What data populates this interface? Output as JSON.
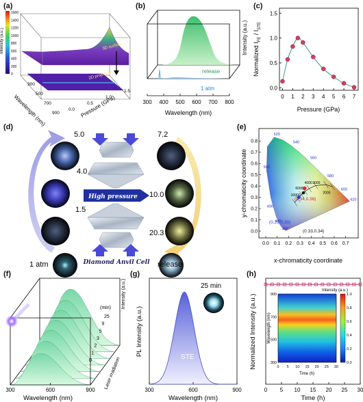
{
  "panel_labels": [
    "(a)",
    "(b)",
    "(c)",
    "(d)",
    "(e)",
    "(f)",
    "(g)",
    "(h)"
  ],
  "panel_a": {
    "colorbar_title": "Intensity (a.u.)",
    "colorbar_ticks": [
      "1600",
      "1400",
      "1200",
      "1000",
      "800",
      "600",
      "400",
      "200",
      "0"
    ],
    "surface_label": "3D surface",
    "projection_label": "2D projection",
    "xlabel": "Wavelength (nm)",
    "ylabel": "Pressure (GPa)",
    "x_ticks": [
      "300",
      "500",
      "700",
      "900"
    ],
    "y_ticks": [
      "0.0",
      "0.5",
      "1.0",
      "1.5"
    ]
  },
  "panel_b": {
    "ylabel": "Intensity (a.u.)",
    "xlabel": "Wavelength (nm)",
    "x_ticks": [
      "300",
      "400",
      "500",
      "600",
      "700",
      "800"
    ],
    "label_release": "release",
    "label_1atm": "1 atm"
  },
  "panel_c": {
    "ylabel_main": "Normalized I",
    "ylabel_sub1": "FE",
    "ylabel_mid": " / I",
    "ylabel_sub2": "STE",
    "xlabel": "Pressure (GPa)",
    "x_ticks": [
      "0",
      "1",
      "2",
      "3",
      "4",
      "5",
      "6",
      "7"
    ],
    "y_ticks": [
      "0.0",
      "0.5",
      "1.0",
      "1.5"
    ]
  },
  "chart_data": [
    {
      "type": "scatter",
      "panel": "c",
      "x": [
        0.0,
        0.5,
        1.0,
        1.5,
        2.0,
        3.0,
        4.0,
        5.0,
        6.0,
        7.0
      ],
      "y": [
        0.13,
        0.57,
        0.83,
        1.0,
        0.91,
        0.62,
        0.38,
        0.22,
        0.09,
        0.01
      ],
      "xlim": [
        -0.3,
        7.4
      ],
      "ylim": [
        -0.05,
        1.6
      ],
      "xlabel": "Pressure (GPa)",
      "ylabel": "Normalized I_FE / I_STE"
    },
    {
      "type": "line",
      "panel": "h",
      "x": [
        0,
        1,
        2,
        3,
        4,
        5,
        6,
        7,
        8,
        9,
        10,
        11,
        12,
        13,
        14,
        15,
        16,
        17,
        18,
        19,
        20,
        21,
        22,
        23,
        24,
        25,
        26,
        27,
        28,
        29,
        30
      ],
      "y": [
        1.0,
        1.0,
        1.0,
        1.0,
        1.0,
        1.0,
        1.0,
        1.0,
        1.0,
        1.0,
        1.0,
        1.0,
        1.0,
        1.0,
        1.0,
        1.0,
        1.0,
        1.0,
        1.0,
        1.0,
        1.0,
        1.0,
        1.0,
        1.0,
        1.0,
        1.0,
        1.0,
        1.0,
        1.0,
        1.0,
        1.0
      ],
      "xlim": [
        0,
        30
      ],
      "xlabel": "Time (h)",
      "ylabel": "Normalized Intensity (a.u.)"
    },
    {
      "type": "heatmap",
      "panel": "h-inset",
      "title": "Intensity (a.u.)",
      "xlabel": "Time (h)",
      "ylabel": "Wavelength (nm)",
      "x_ticks": [
        "0",
        "5",
        "10",
        "15",
        "20",
        "25",
        "30"
      ],
      "y_ticks": [
        "300",
        "500",
        "700",
        "900"
      ],
      "colorbar_ticks": [
        "1.0",
        "0.8",
        "0.6",
        "0.4",
        "0.2",
        "0.0"
      ],
      "peak_wavelength": 540
    }
  ],
  "panel_d": {
    "left_values": [
      "5.0",
      "4.0",
      "1.5",
      "1 atm"
    ],
    "right_values": [
      "7.2",
      "10.0",
      "20.3",
      "release"
    ],
    "high_pressure": "High pressure",
    "dac": "Diamond Anvil Cell"
  },
  "panel_e": {
    "xlabel": "x-chromaticity coordinate",
    "ylabel": "y-chromaticity coordinate",
    "x_ticks": [
      "0.0",
      "0.1",
      "0.2",
      "0.3",
      "0.4",
      "0.5",
      "0.6",
      "0.7"
    ],
    "y_ticks": [
      "0.0",
      "0.1",
      "0.2",
      "0.3",
      "0.4",
      "0.5",
      "0.6",
      "0.7",
      "0.8"
    ],
    "wavelength_labels": [
      "520",
      "540",
      "560",
      "580",
      "600",
      "620",
      "500",
      "490",
      "480",
      "460"
    ],
    "temp_labels": [
      "10000",
      "6000",
      "4000",
      "3000",
      "2000"
    ],
    "coord_1": "(0.34,0.38)",
    "coord_2": "(0.29,0.30)",
    "coord_3": "(0.33,0.34)"
  },
  "panel_f": {
    "ylabel": "Intensity (a.u.)",
    "xlabel": "Wavelength (nm)",
    "x_ticks": [
      "300",
      "600",
      "900"
    ],
    "min_label": "(min)",
    "time_labels": [
      "25",
      "9",
      "5",
      "3",
      "2",
      "1",
      "0"
    ],
    "laser_label": "Laser irradiation"
  },
  "panel_g": {
    "ylabel": "PL Intensity (a.u.)",
    "xlabel": "Wavelength (nm)",
    "x_ticks": [
      "300",
      "600",
      "900"
    ],
    "time_label": "25 min",
    "peak_label": "STE"
  },
  "panel_h": {
    "ylabel": "Normalized Intensity (a.u.)",
    "xlabel": "Time (h)",
    "x_ticks": [
      "0",
      "5",
      "10",
      "15",
      "20",
      "25",
      "30"
    ]
  }
}
